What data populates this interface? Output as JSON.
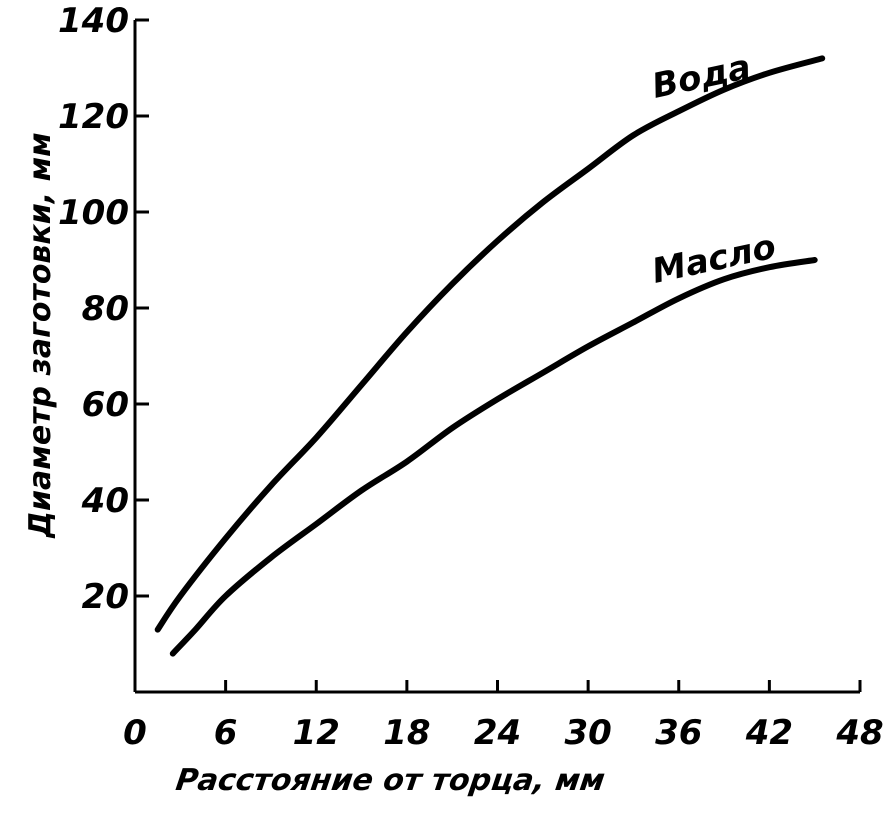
{
  "chart_data": {
    "type": "line",
    "title": "",
    "xlabel": "Расстояние от торца, мм",
    "ylabel": "Диаметр заготовки, мм",
    "xlim": [
      0,
      48
    ],
    "ylim": [
      0,
      140
    ],
    "x_ticks": [
      "0",
      "6",
      "12",
      "18",
      "24",
      "30",
      "36",
      "42",
      "48"
    ],
    "y_ticks": [
      "20",
      "40",
      "60",
      "80",
      "100",
      "120",
      "140"
    ],
    "grid": false,
    "legend": "inline labels at line ends",
    "series": [
      {
        "name": "Вода",
        "color": "#000000",
        "x": [
          1.5,
          3,
          6,
          9,
          12,
          15,
          18,
          21,
          24,
          27,
          30,
          33,
          36,
          39,
          42,
          45.5
        ],
        "y": [
          13,
          20,
          32,
          43,
          53,
          64,
          75,
          85,
          94,
          102,
          109,
          116,
          121,
          125.5,
          129,
          132
        ]
      },
      {
        "name": "Масло",
        "color": "#000000",
        "x": [
          2.5,
          4,
          6,
          9,
          12,
          15,
          18,
          21,
          24,
          27,
          30,
          33,
          36,
          39,
          42,
          45
        ],
        "y": [
          8,
          13,
          20,
          28,
          35,
          42,
          48,
          55,
          61,
          66.5,
          72,
          77,
          82,
          86,
          88.5,
          90
        ]
      }
    ]
  }
}
